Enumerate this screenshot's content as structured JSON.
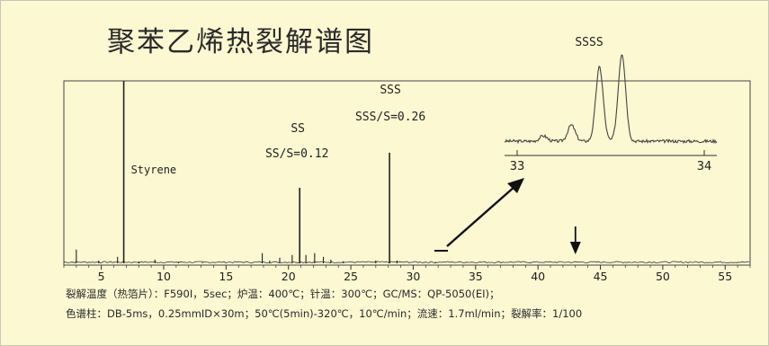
{
  "title": "聚苯乙烯热裂解谱图",
  "conditions": [
    "裂解温度（热箔片）：F590I，5sec；炉温：400℃；针温：300℃；GC/MS：QP-5050(EI)；",
    "色谱柱：DB-5ms，0.25mmID×30m；50℃(5min)-320℃，10℃/min；流速：1.7ml/min；裂解率：1/100"
  ],
  "chart_data": {
    "type": "line",
    "title": "聚苯乙烯热裂解谱图",
    "xlabel": "",
    "ylabel": "",
    "xlim": [
      2,
      57
    ],
    "ylim": [
      0,
      100
    ],
    "xticks": [
      5,
      10,
      15,
      20,
      25,
      30,
      35,
      40,
      45,
      50,
      55
    ],
    "grid": false,
    "peaks": [
      {
        "x": 3.0,
        "y": 8.5
      },
      {
        "x": 4.8,
        "y": 2.5
      },
      {
        "x": 6.3,
        "y": 4.5
      },
      {
        "x": 6.8,
        "y": 100,
        "label": "Styrene"
      },
      {
        "x": 8.0,
        "y": 2.0
      },
      {
        "x": 9.3,
        "y": 3.0
      },
      {
        "x": 11.2,
        "y": 1.5
      },
      {
        "x": 13.1,
        "y": 1.5
      },
      {
        "x": 17.9,
        "y": 6.5
      },
      {
        "x": 18.5,
        "y": 2.5
      },
      {
        "x": 19.3,
        "y": 4.0
      },
      {
        "x": 20.3,
        "y": 5.5
      },
      {
        "x": 20.9,
        "y": 42.0,
        "label": "SS"
      },
      {
        "x": 21.4,
        "y": 5.5
      },
      {
        "x": 22.1,
        "y": 6.5
      },
      {
        "x": 22.8,
        "y": 4.5
      },
      {
        "x": 23.4,
        "y": 3.0
      },
      {
        "x": 24.4,
        "y": 2.0
      },
      {
        "x": 27.0,
        "y": 2.5
      },
      {
        "x": 28.1,
        "y": 61.0,
        "label": "SSS"
      },
      {
        "x": 28.7,
        "y": 2.5
      },
      {
        "x": 31.8,
        "y": 1.5
      }
    ],
    "annotations": [
      {
        "text": "Styrene"
      },
      {
        "text": "SS"
      },
      {
        "text": "SS/S=0.12"
      },
      {
        "text": "SSS"
      },
      {
        "text": "SSS/S=0.26"
      },
      {
        "text": "SSSS"
      }
    ],
    "arrow_down_at": 43,
    "inset": {
      "label": "SSSS",
      "xlim": [
        33,
        34
      ],
      "xticks": [
        33,
        34
      ],
      "peaks": [
        {
          "x": 33.14,
          "y": 4
        },
        {
          "x": 33.29,
          "y": 12
        },
        {
          "x": 33.44,
          "y": 55
        },
        {
          "x": 33.56,
          "y": 65
        }
      ]
    }
  }
}
